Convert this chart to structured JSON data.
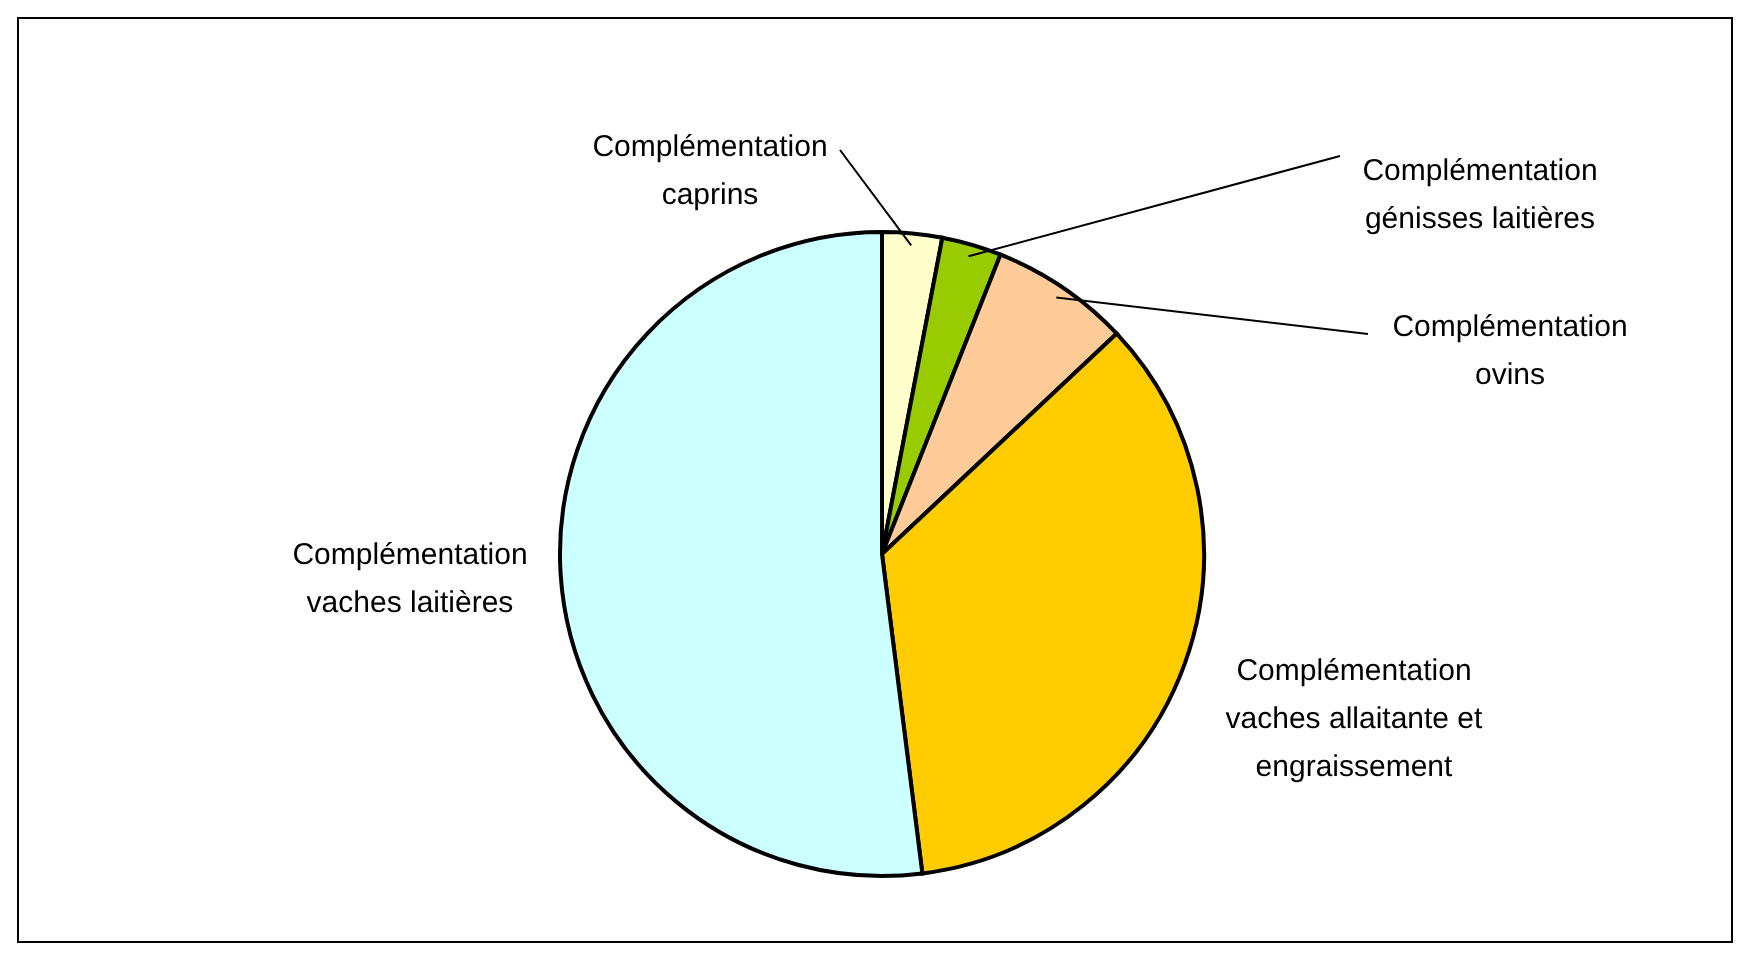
{
  "chart_data": {
    "type": "pie",
    "categories": [
      "Complémentation caprins",
      "Complémentation génisses laitières",
      "Complémentation ovins",
      "Complémentation vaches allaitante et engraissement",
      "Complémentation vaches laitières"
    ],
    "values": [
      3,
      3,
      7,
      35,
      52
    ],
    "colors": [
      "#ffffcc",
      "#99cc00",
      "#ffcc99",
      "#ffcc00",
      "#ccffff"
    ]
  }
}
